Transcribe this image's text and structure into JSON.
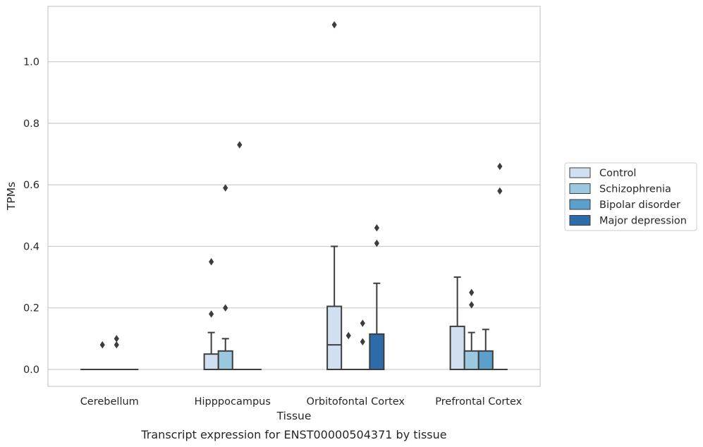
{
  "chart_data": {
    "type": "box",
    "title": "",
    "caption": "Transcript expression for ENST00000504371 by tissue",
    "xlabel": "Tissue",
    "ylabel": "TPMs",
    "ylim": [
      -0.055,
      1.18
    ],
    "yticks": [
      "0.0",
      "0.2",
      "0.4",
      "0.6",
      "0.8",
      "1.0"
    ],
    "grid": "horizontal",
    "legend_position": "right",
    "categories": [
      "Cerebellum",
      "Hipppocampus",
      "Orbitofontal Cortex",
      "Prefrontal Cortex"
    ],
    "series": [
      {
        "name": "Control",
        "color": "#d0e0f1",
        "boxes": [
          {
            "q1": 0,
            "median": 0,
            "q3": 0,
            "whislo": 0,
            "whishi": 0,
            "fliers": []
          },
          {
            "q1": 0,
            "median": 0,
            "q3": 0.05,
            "whislo": 0,
            "whishi": 0.12,
            "fliers": [
              0.18,
              0.35
            ]
          },
          {
            "q1": 0,
            "median": 0.08,
            "q3": 0.205,
            "whislo": 0,
            "whishi": 0.4,
            "fliers": [
              1.12
            ]
          },
          {
            "q1": 0,
            "median": 0,
            "q3": 0.14,
            "whislo": 0,
            "whishi": 0.3,
            "fliers": []
          }
        ]
      },
      {
        "name": "Schizophrenia",
        "color": "#9ac8e0",
        "boxes": [
          {
            "q1": 0,
            "median": 0,
            "q3": 0,
            "whislo": 0,
            "whishi": 0,
            "fliers": [
              0.08
            ]
          },
          {
            "q1": 0,
            "median": 0,
            "q3": 0.06,
            "whislo": 0,
            "whishi": 0.1,
            "fliers": [
              0.2,
              0.59
            ]
          },
          {
            "q1": 0,
            "median": 0,
            "q3": 0,
            "whislo": 0,
            "whishi": 0,
            "fliers": [
              0.11
            ]
          },
          {
            "q1": 0,
            "median": 0,
            "q3": 0.06,
            "whislo": 0,
            "whishi": 0.12,
            "fliers": [
              0.21,
              0.25
            ]
          }
        ]
      },
      {
        "name": "Bipolar disorder",
        "color": "#5b9fcc",
        "boxes": [
          {
            "q1": 0,
            "median": 0,
            "q3": 0,
            "whislo": 0,
            "whishi": 0,
            "fliers": [
              0.08,
              0.1
            ]
          },
          {
            "q1": 0,
            "median": 0,
            "q3": 0,
            "whislo": 0,
            "whishi": 0,
            "fliers": [
              0.73
            ]
          },
          {
            "q1": 0,
            "median": 0,
            "q3": 0,
            "whislo": 0,
            "whishi": 0,
            "fliers": [
              0.09,
              0.15
            ]
          },
          {
            "q1": 0,
            "median": 0,
            "q3": 0.06,
            "whislo": 0,
            "whishi": 0.13,
            "fliers": []
          }
        ]
      },
      {
        "name": "Major depression",
        "color": "#2d6ba9",
        "boxes": [
          {
            "q1": 0,
            "median": 0,
            "q3": 0,
            "whislo": 0,
            "whishi": 0,
            "fliers": []
          },
          {
            "q1": 0,
            "median": 0,
            "q3": 0,
            "whislo": 0,
            "whishi": 0,
            "fliers": []
          },
          {
            "q1": 0,
            "median": 0,
            "q3": 0.115,
            "whislo": 0,
            "whishi": 0.28,
            "fliers": [
              0.41,
              0.46
            ]
          },
          {
            "q1": 0,
            "median": 0,
            "q3": 0,
            "whislo": 0,
            "whishi": 0,
            "fliers": [
              0.58,
              0.66
            ]
          }
        ]
      }
    ]
  }
}
